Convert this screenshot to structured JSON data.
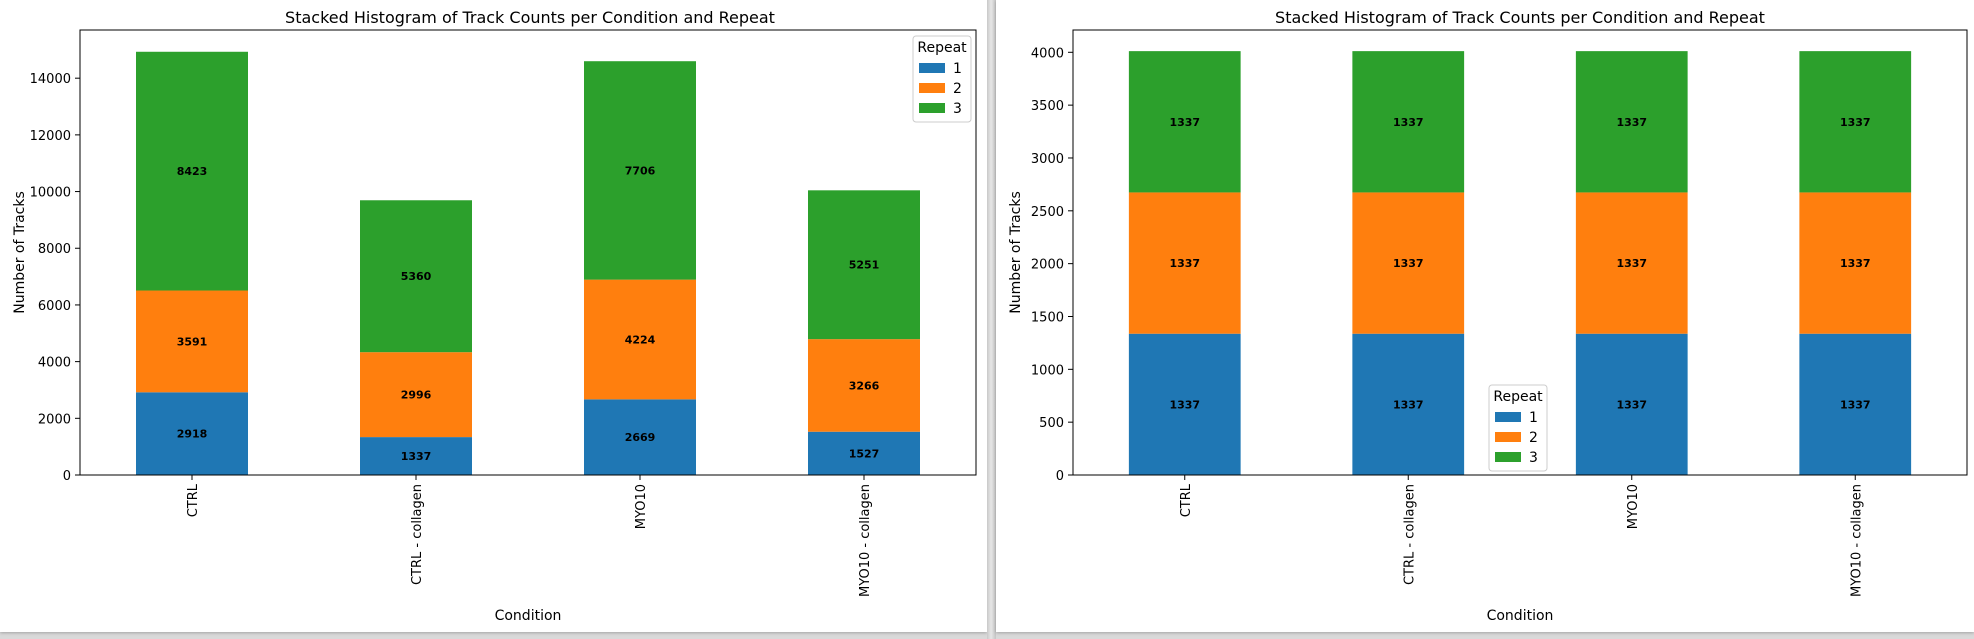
{
  "colors": {
    "repeat_1": "#1f77b4",
    "repeat_2": "#ff7f0e",
    "repeat_3": "#2ca02c"
  },
  "chart_data": [
    {
      "type": "bar",
      "stacked": true,
      "title": "Stacked Histogram of Track Counts per Condition and Repeat",
      "xlabel": "Condition",
      "ylabel": "Number of Tracks",
      "categories": [
        "CTRL",
        "CTRL - collagen",
        "MYO10",
        "MYO10 - collagen"
      ],
      "series": [
        {
          "name": "1",
          "values": [
            2918,
            1337,
            2669,
            1527
          ]
        },
        {
          "name": "2",
          "values": [
            3591,
            2996,
            4224,
            3266
          ]
        },
        {
          "name": "3",
          "values": [
            8423,
            5360,
            7706,
            5251
          ]
        }
      ],
      "ylim": [
        0,
        15700
      ],
      "yticks": [
        0,
        2000,
        4000,
        6000,
        8000,
        10000,
        12000,
        14000
      ],
      "grid": false,
      "legend": {
        "title": "Repeat",
        "placement": "top-right"
      },
      "data_labels": true
    },
    {
      "type": "bar",
      "stacked": true,
      "title": "Stacked Histogram of Track Counts per Condition and Repeat",
      "xlabel": "Condition",
      "ylabel": "Number of Tracks",
      "categories": [
        "CTRL",
        "CTRL - collagen",
        "MYO10",
        "MYO10 - collagen"
      ],
      "series": [
        {
          "name": "1",
          "values": [
            1337,
            1337,
            1337,
            1337
          ]
        },
        {
          "name": "2",
          "values": [
            1337,
            1337,
            1337,
            1337
          ]
        },
        {
          "name": "3",
          "values": [
            1337,
            1337,
            1337,
            1337
          ]
        }
      ],
      "ylim": [
        0,
        4211
      ],
      "yticks": [
        0,
        500,
        1000,
        1500,
        2000,
        2500,
        3000,
        3500,
        4000
      ],
      "grid": false,
      "legend": {
        "title": "Repeat",
        "placement": "lower-center"
      },
      "data_labels": true
    }
  ]
}
